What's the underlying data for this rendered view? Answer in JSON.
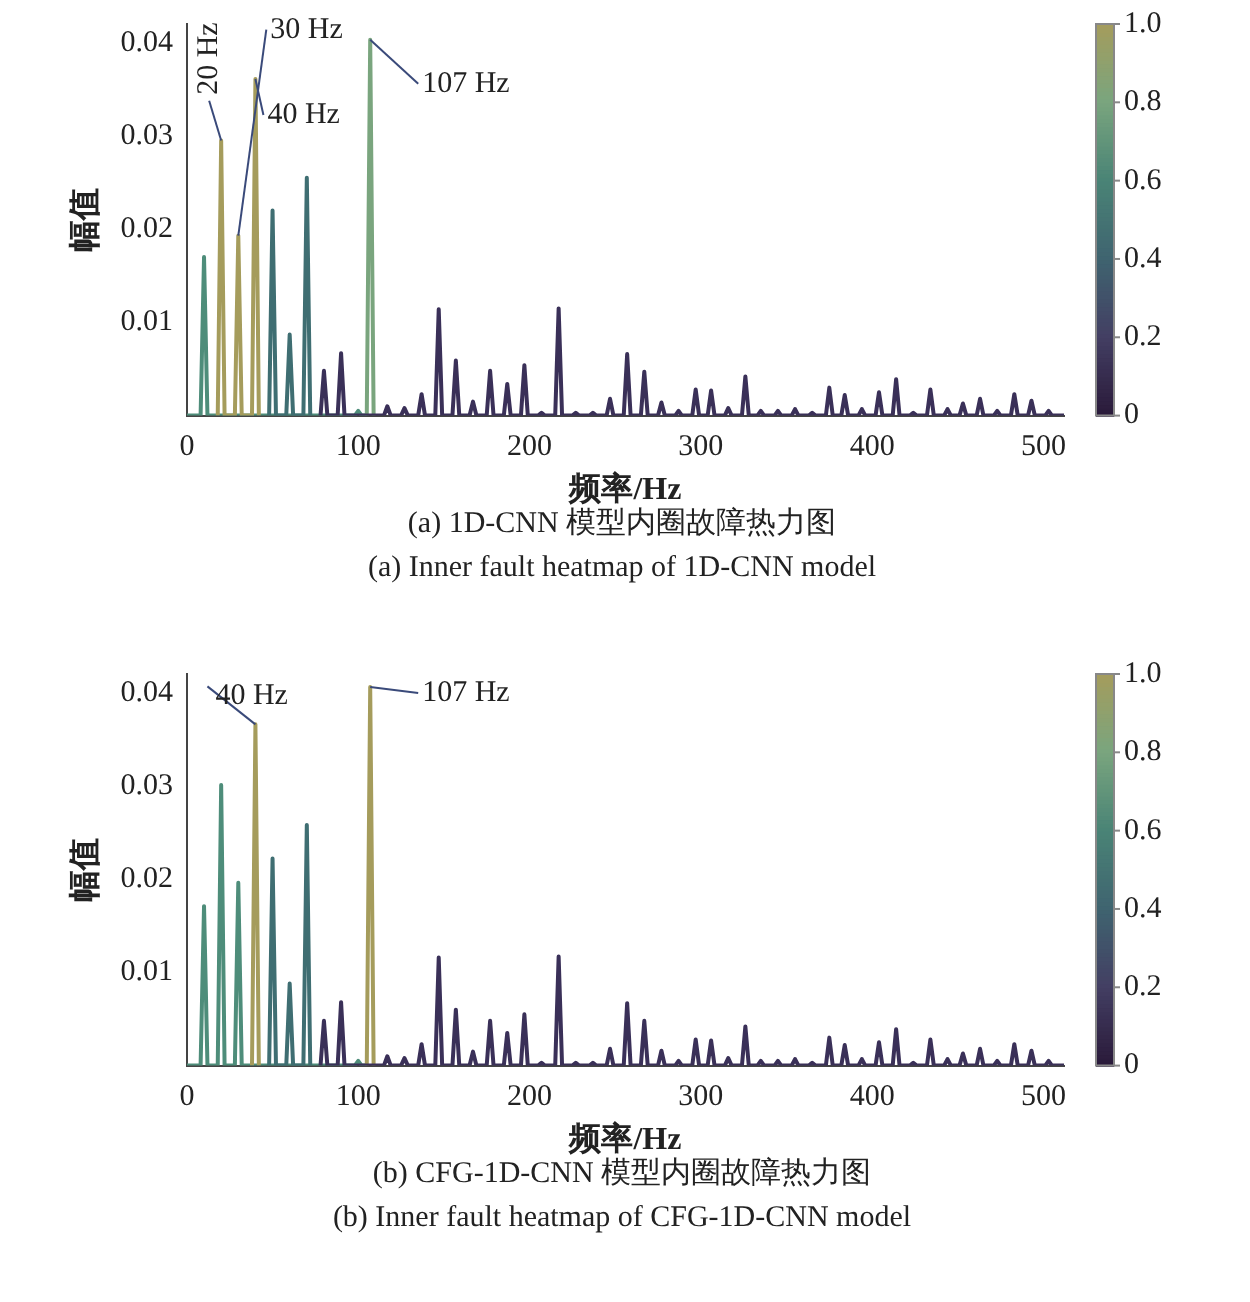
{
  "chart_data": [
    {
      "type": "line",
      "title": "(a) 1D-CNN 模型内圈故障热力图",
      "subtitle": "(a) Inner fault heatmap of 1D-CNN model",
      "xlabel": "频率/Hz",
      "ylabel": "幅值",
      "series": [
        {
          "color": "#4e8d7a",
          "x": [
            0,
            8,
            10,
            12,
            98,
            100,
            102,
            105
          ],
          "values": [
            0,
            0,
            0.017,
            0,
            0,
            0.0005,
            0,
            0
          ]
        },
        {
          "color": "#a59c5c",
          "x": [
            18,
            20,
            22,
            28,
            30,
            32,
            38,
            40,
            42
          ],
          "values": [
            0,
            0.0295,
            0,
            0,
            0.0193,
            0,
            0,
            0.0361,
            0
          ]
        },
        {
          "color": "#3f6e72",
          "x": [
            48,
            50,
            52,
            58,
            60,
            62,
            68,
            70,
            72
          ],
          "values": [
            0,
            0.022,
            0,
            0,
            0.0087,
            0,
            0,
            0.0255,
            0
          ]
        },
        {
          "color": "#7aa57e",
          "x": [
            105,
            107,
            109
          ],
          "values": [
            0,
            0.0403,
            0
          ]
        },
        {
          "color": "#3a3058",
          "x": [
            78,
            80,
            82,
            88,
            90,
            92,
            115,
            117,
            119,
            125,
            127,
            129,
            135,
            137,
            139,
            145,
            147,
            149,
            155,
            157,
            159,
            165,
            167,
            169,
            175,
            177,
            179,
            185,
            187,
            189,
            195,
            197,
            199,
            205,
            207,
            209,
            215,
            217,
            219,
            225,
            227,
            229,
            235,
            237,
            239,
            245,
            247,
            249,
            255,
            257,
            259,
            265,
            267,
            269,
            275,
            277,
            279,
            285,
            287,
            289,
            295,
            297,
            299,
            304,
            306,
            308,
            314,
            316,
            318,
            324,
            326,
            328,
            333,
            335,
            337,
            343,
            345,
            347,
            353,
            355,
            357,
            363,
            365,
            367,
            373,
            375,
            377,
            382,
            384,
            386,
            392,
            394,
            396,
            402,
            404,
            406,
            412,
            414,
            416,
            422,
            424,
            426,
            432,
            434,
            436,
            442,
            444,
            446,
            451,
            453,
            455,
            461,
            463,
            465,
            471,
            473,
            475,
            481,
            483,
            485,
            491,
            493,
            495,
            501,
            503,
            505,
            512
          ],
          "values": [
            0,
            0.0048,
            0,
            0,
            0.0067,
            0,
            0,
            0.001,
            0,
            0,
            0.0008,
            0,
            0,
            0.0023,
            0,
            0,
            0.0114,
            0,
            0,
            0.0059,
            0,
            0,
            0.0015,
            0,
            0,
            0.0048,
            0,
            0,
            0.0034,
            0,
            0,
            0.0054,
            0,
            0,
            0.0003,
            0,
            0,
            0.0115,
            0,
            0,
            0.0003,
            0,
            0,
            0.0003,
            0,
            0,
            0.0018,
            0,
            0,
            0.0066,
            0,
            0,
            0.0047,
            0,
            0,
            0.0014,
            0,
            0,
            0.0005,
            0,
            0,
            0.0028,
            0,
            0,
            0.0027,
            0,
            0,
            0.0008,
            0,
            0,
            0.0042,
            0,
            0,
            0.0005,
            0,
            0,
            0.0005,
            0,
            0,
            0.0007,
            0,
            0,
            0.0003,
            0,
            0,
            0.003,
            0,
            0,
            0.0022,
            0,
            0,
            0.0007,
            0,
            0,
            0.0025,
            0,
            0,
            0.0039,
            0,
            0,
            0.0003,
            0,
            0,
            0.0028,
            0,
            0,
            0.0007,
            0,
            0,
            0.0013,
            0,
            0,
            0.0018,
            0,
            0,
            0.0005,
            0,
            0,
            0.0023,
            0,
            0,
            0.0016,
            0,
            0,
            0.0005,
            0,
            0
          ]
        }
      ],
      "xlim": [
        0,
        512
      ],
      "xticks": [
        0,
        100,
        200,
        300,
        400,
        500
      ],
      "ylim": [
        0,
        0.042
      ],
      "yticks": [
        0.01,
        0.02,
        0.03,
        0.04
      ],
      "clim": [
        0,
        1
      ],
      "cticks": [
        0,
        0.2,
        0.4,
        0.6,
        0.8,
        {
          "value": 1,
          "label": "1.0"
        }
      ],
      "grid": false,
      "legend": false,
      "annotations": [
        {
          "text": "20 Hz",
          "x": 20,
          "y": 0.0295
        },
        {
          "text": "30 Hz",
          "x": 30,
          "y": 0.0193
        },
        {
          "text": "40 Hz",
          "x": 40,
          "y": 0.0361
        },
        {
          "text": "107 Hz",
          "x": 107,
          "y": 0.0403
        }
      ]
    },
    {
      "type": "line",
      "title": "(b) CFG-1D-CNN 模型内圈故障热力图",
      "subtitle": "(b) Inner fault heatmap of CFG-1D-CNN model",
      "xlabel": "频率/Hz",
      "ylabel": "幅值",
      "series": [
        {
          "color": "#4e8d7a",
          "x": [
            0,
            8,
            10,
            12,
            18,
            20,
            22,
            28,
            30,
            32,
            98,
            100,
            102,
            105
          ],
          "values": [
            0,
            0,
            0.0171,
            0,
            0,
            0.0301,
            0,
            0,
            0.0196,
            0,
            0,
            0.0005,
            0,
            0
          ]
        },
        {
          "color": "#a59c5c",
          "x": [
            38,
            40,
            42,
            70,
            105,
            107,
            109
          ],
          "values": [
            0,
            0.0366,
            0,
            null,
            0,
            0.0406,
            0
          ]
        },
        {
          "color": "#3f6e72",
          "x": [
            48,
            50,
            52,
            58,
            60,
            62,
            68,
            70,
            72
          ],
          "values": [
            0,
            0.0222,
            0,
            0,
            0.0088,
            0,
            0,
            0.0258,
            0
          ]
        },
        {
          "color": "#3a3058",
          "x": [
            78,
            80,
            82,
            88,
            90,
            92,
            115,
            117,
            119,
            125,
            127,
            129,
            135,
            137,
            139,
            145,
            147,
            149,
            155,
            157,
            159,
            165,
            167,
            169,
            175,
            177,
            179,
            185,
            187,
            189,
            195,
            197,
            199,
            205,
            207,
            209,
            215,
            217,
            219,
            225,
            227,
            229,
            235,
            237,
            239,
            245,
            247,
            249,
            255,
            257,
            259,
            265,
            267,
            269,
            275,
            277,
            279,
            285,
            287,
            289,
            295,
            297,
            299,
            304,
            306,
            308,
            314,
            316,
            318,
            324,
            326,
            328,
            333,
            335,
            337,
            343,
            345,
            347,
            353,
            355,
            357,
            363,
            365,
            367,
            373,
            375,
            377,
            382,
            384,
            386,
            392,
            394,
            396,
            402,
            404,
            406,
            412,
            414,
            416,
            422,
            424,
            426,
            432,
            434,
            436,
            442,
            444,
            446,
            451,
            453,
            455,
            461,
            463,
            465,
            471,
            473,
            475,
            481,
            483,
            485,
            491,
            493,
            495,
            501,
            503,
            505,
            512
          ],
          "values": [
            0,
            0.0048,
            0,
            0,
            0.0068,
            0,
            0,
            0.001,
            0,
            0,
            0.0008,
            0,
            0,
            0.0023,
            0,
            0,
            0.0116,
            0,
            0,
            0.006,
            0,
            0,
            0.0015,
            0,
            0,
            0.0048,
            0,
            0,
            0.0035,
            0,
            0,
            0.0055,
            0,
            0,
            0.0003,
            0,
            0,
            0.0117,
            0,
            0,
            0.0003,
            0,
            0,
            0.0003,
            0,
            0,
            0.0018,
            0,
            0,
            0.0067,
            0,
            0,
            0.0048,
            0,
            0,
            0.0016,
            0,
            0,
            0.0005,
            0,
            0,
            0.0028,
            0,
            0,
            0.0027,
            0,
            0,
            0.0008,
            0,
            0,
            0.0042,
            0,
            0,
            0.0005,
            0,
            0,
            0.0005,
            0,
            0,
            0.0007,
            0,
            0,
            0.0003,
            0,
            0,
            0.003,
            0,
            0,
            0.0022,
            0,
            0,
            0.0007,
            0,
            0,
            0.0025,
            0,
            0,
            0.0039,
            0,
            0,
            0.0003,
            0,
            0,
            0.0028,
            0,
            0,
            0.0007,
            0,
            0,
            0.0013,
            0,
            0,
            0.0018,
            0,
            0,
            0.0005,
            0,
            0,
            0.0023,
            0,
            0,
            0.0016,
            0,
            0,
            0.0005,
            0,
            0
          ]
        }
      ],
      "xlim": [
        0,
        512
      ],
      "xticks": [
        0,
        100,
        200,
        300,
        400,
        500
      ],
      "ylim": [
        0,
        0.042
      ],
      "yticks": [
        0.01,
        0.02,
        0.03,
        0.04
      ],
      "clim": [
        0,
        1
      ],
      "cticks": [
        0,
        0.2,
        0.4,
        0.6,
        0.8,
        {
          "value": 1,
          "label": "1.0"
        }
      ],
      "grid": false,
      "legend": false,
      "annotations": [
        {
          "text": "40 Hz",
          "x": 40,
          "y": 0.0366
        },
        {
          "text": "107 Hz",
          "x": 107,
          "y": 0.0406
        }
      ]
    }
  ]
}
